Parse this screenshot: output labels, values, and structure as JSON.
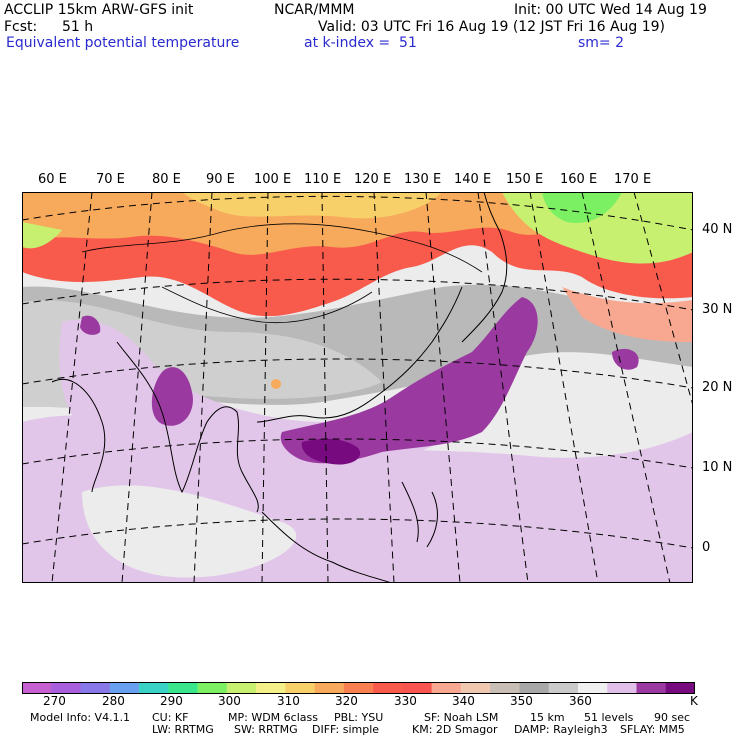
{
  "header": {
    "model": "ACCLIP 15km ARW-GFS init",
    "org": "NCAR/MMM",
    "init": "Init: 00 UTC Wed 14 Aug 19",
    "fcst_label": "Fcst:",
    "fcst_value": "51 h",
    "valid": "Valid: 03 UTC Fri 16 Aug 19 (12 JST Fri 16 Aug 19)",
    "field": "Equivalent potential temperature",
    "level": "at k-index =  51",
    "smoothing": "sm= 2"
  },
  "map": {
    "lon_labels": [
      "60 E",
      "70 E",
      "80 E",
      "90 E",
      "100 E",
      "110 E",
      "120 E",
      "130 E",
      "140 E",
      "150 E",
      "160 E",
      "170 E"
    ],
    "lat_labels": [
      "40 N",
      "30 N",
      "20 N",
      "10 N",
      "0"
    ]
  },
  "colorbar": {
    "unit": "K",
    "labels": [
      "270",
      "280",
      "290",
      "300",
      "310",
      "320",
      "330",
      "340",
      "350",
      "360"
    ],
    "colors": [
      "#c65fd0",
      "#a85fdc",
      "#8878e8",
      "#6aa0f0",
      "#3ad2c6",
      "#3ae68c",
      "#7af062",
      "#c8f070",
      "#f6f088",
      "#f8d06a",
      "#f8aa5c",
      "#f88050",
      "#f85a4c",
      "#f85450",
      "#f8a890",
      "#f0c8b0",
      "#c8beb6",
      "#a8a8a8",
      "#cacaca",
      "#f0f0f0",
      "#e0c0e8",
      "#9a3aa0",
      "#780a80"
    ]
  },
  "footer": {
    "line1": [
      "Model Info: V4.1.1",
      "CU: KF",
      "MP: WDM 6class",
      "PBL: YSU",
      "SF: Noah LSM",
      "15 km",
      "51 levels",
      "90 sec"
    ],
    "line2": [
      "LW: RRTMG",
      "SW: RRTMG",
      "DIFF: simple",
      "KM: 2D Smagor",
      "DAMP: Rayleigh3",
      "SFLAY: MM5"
    ]
  }
}
